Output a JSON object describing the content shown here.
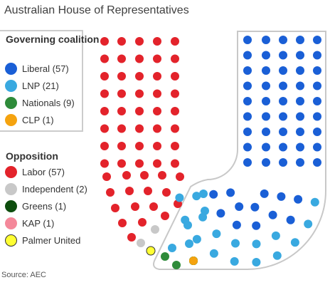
{
  "title": "Australian House of Representatives",
  "source": "Source: AEC",
  "legend": {
    "government_heading": "Governing coalition",
    "opposition_heading": "Opposition"
  },
  "chart_data": {
    "type": "parliament",
    "title": "Australian House of Representatives",
    "groups": [
      {
        "name": "Governing coalition",
        "parties": [
          {
            "name": "Liberal",
            "label": "Liberal (57)",
            "seats": 57,
            "color": "#1a5fd6"
          },
          {
            "name": "LNP",
            "label": "LNP (21)",
            "seats": 21,
            "color": "#39a9e0"
          },
          {
            "name": "Nationals",
            "label": "Nationals (9)",
            "seats": 9,
            "color": "#2e8b3a"
          },
          {
            "name": "CLP",
            "label": "CLP (1)",
            "seats": 1,
            "color": "#f5a30f"
          }
        ]
      },
      {
        "name": "Opposition",
        "parties": [
          {
            "name": "Labor",
            "label": "Labor (57)",
            "seats": 57,
            "color": "#e3232b"
          },
          {
            "name": "Independent",
            "label": "Independent (2)",
            "seats": 2,
            "color": "#c8c8c8"
          },
          {
            "name": "Greens",
            "label": "Greens (1)",
            "seats": 1,
            "color": "#0d4d0d"
          },
          {
            "name": "KAP",
            "label": "KAP (1)",
            "seats": 1,
            "color": "#f4889a"
          },
          {
            "name": "Palmer United",
            "label": "Palmer United",
            "seats": 1,
            "color": "#ffff33",
            "outline": "#333333"
          }
        ]
      }
    ]
  }
}
